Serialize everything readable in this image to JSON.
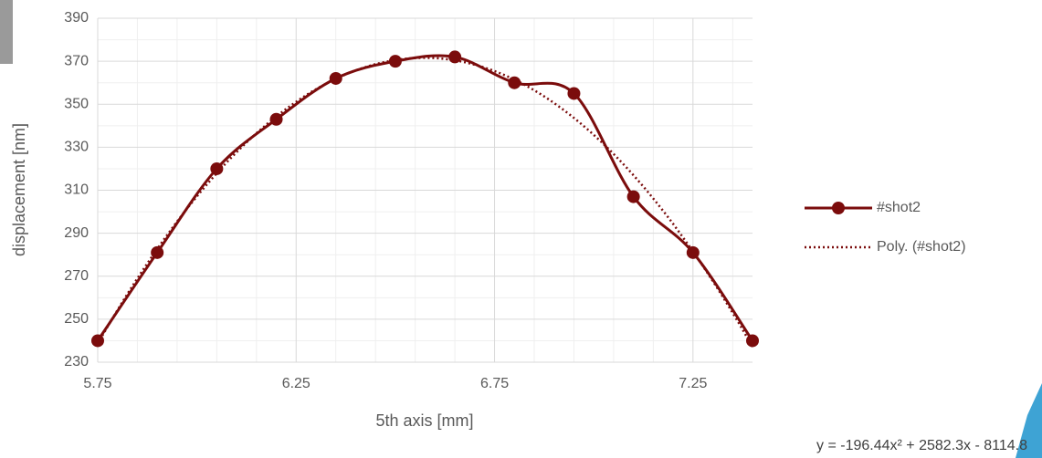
{
  "chart_data": {
    "type": "line",
    "x": [
      5.75,
      5.9,
      6.05,
      6.2,
      6.35,
      6.5,
      6.65,
      6.8,
      6.95,
      7.1,
      7.25,
      7.4
    ],
    "series": [
      {
        "name": "#shot2",
        "color": "#7b0c0c",
        "values": [
          240,
          281,
          320,
          343,
          362,
          370,
          372,
          360,
          355,
          307,
          281,
          240
        ]
      }
    ],
    "trendline": {
      "name": "Poly. (#shot2)",
      "color": "#7b0c0c",
      "coefficients": [
        -196.44,
        2582.3,
        -8114.8
      ],
      "equation": "y = -196.44x² + 2582.3x - 8114.8"
    },
    "x_label": "5th axis [mm]",
    "y_label": "displacement [nm]",
    "xlim": [
      5.75,
      7.4
    ],
    "ylim": [
      230,
      390
    ],
    "xticks": [
      5.75,
      6.25,
      6.75,
      7.25
    ],
    "yticks": [
      230,
      250,
      270,
      290,
      310,
      330,
      350,
      370,
      390
    ],
    "xminorticks": [
      5.85,
      5.95,
      6.05,
      6.15,
      6.35,
      6.45,
      6.55,
      6.65,
      6.85,
      6.95,
      7.05,
      7.15,
      7.35
    ],
    "yminorticks": [
      240,
      260,
      280,
      300,
      320,
      340,
      360,
      380
    ],
    "grid": true,
    "legend": "right"
  }
}
